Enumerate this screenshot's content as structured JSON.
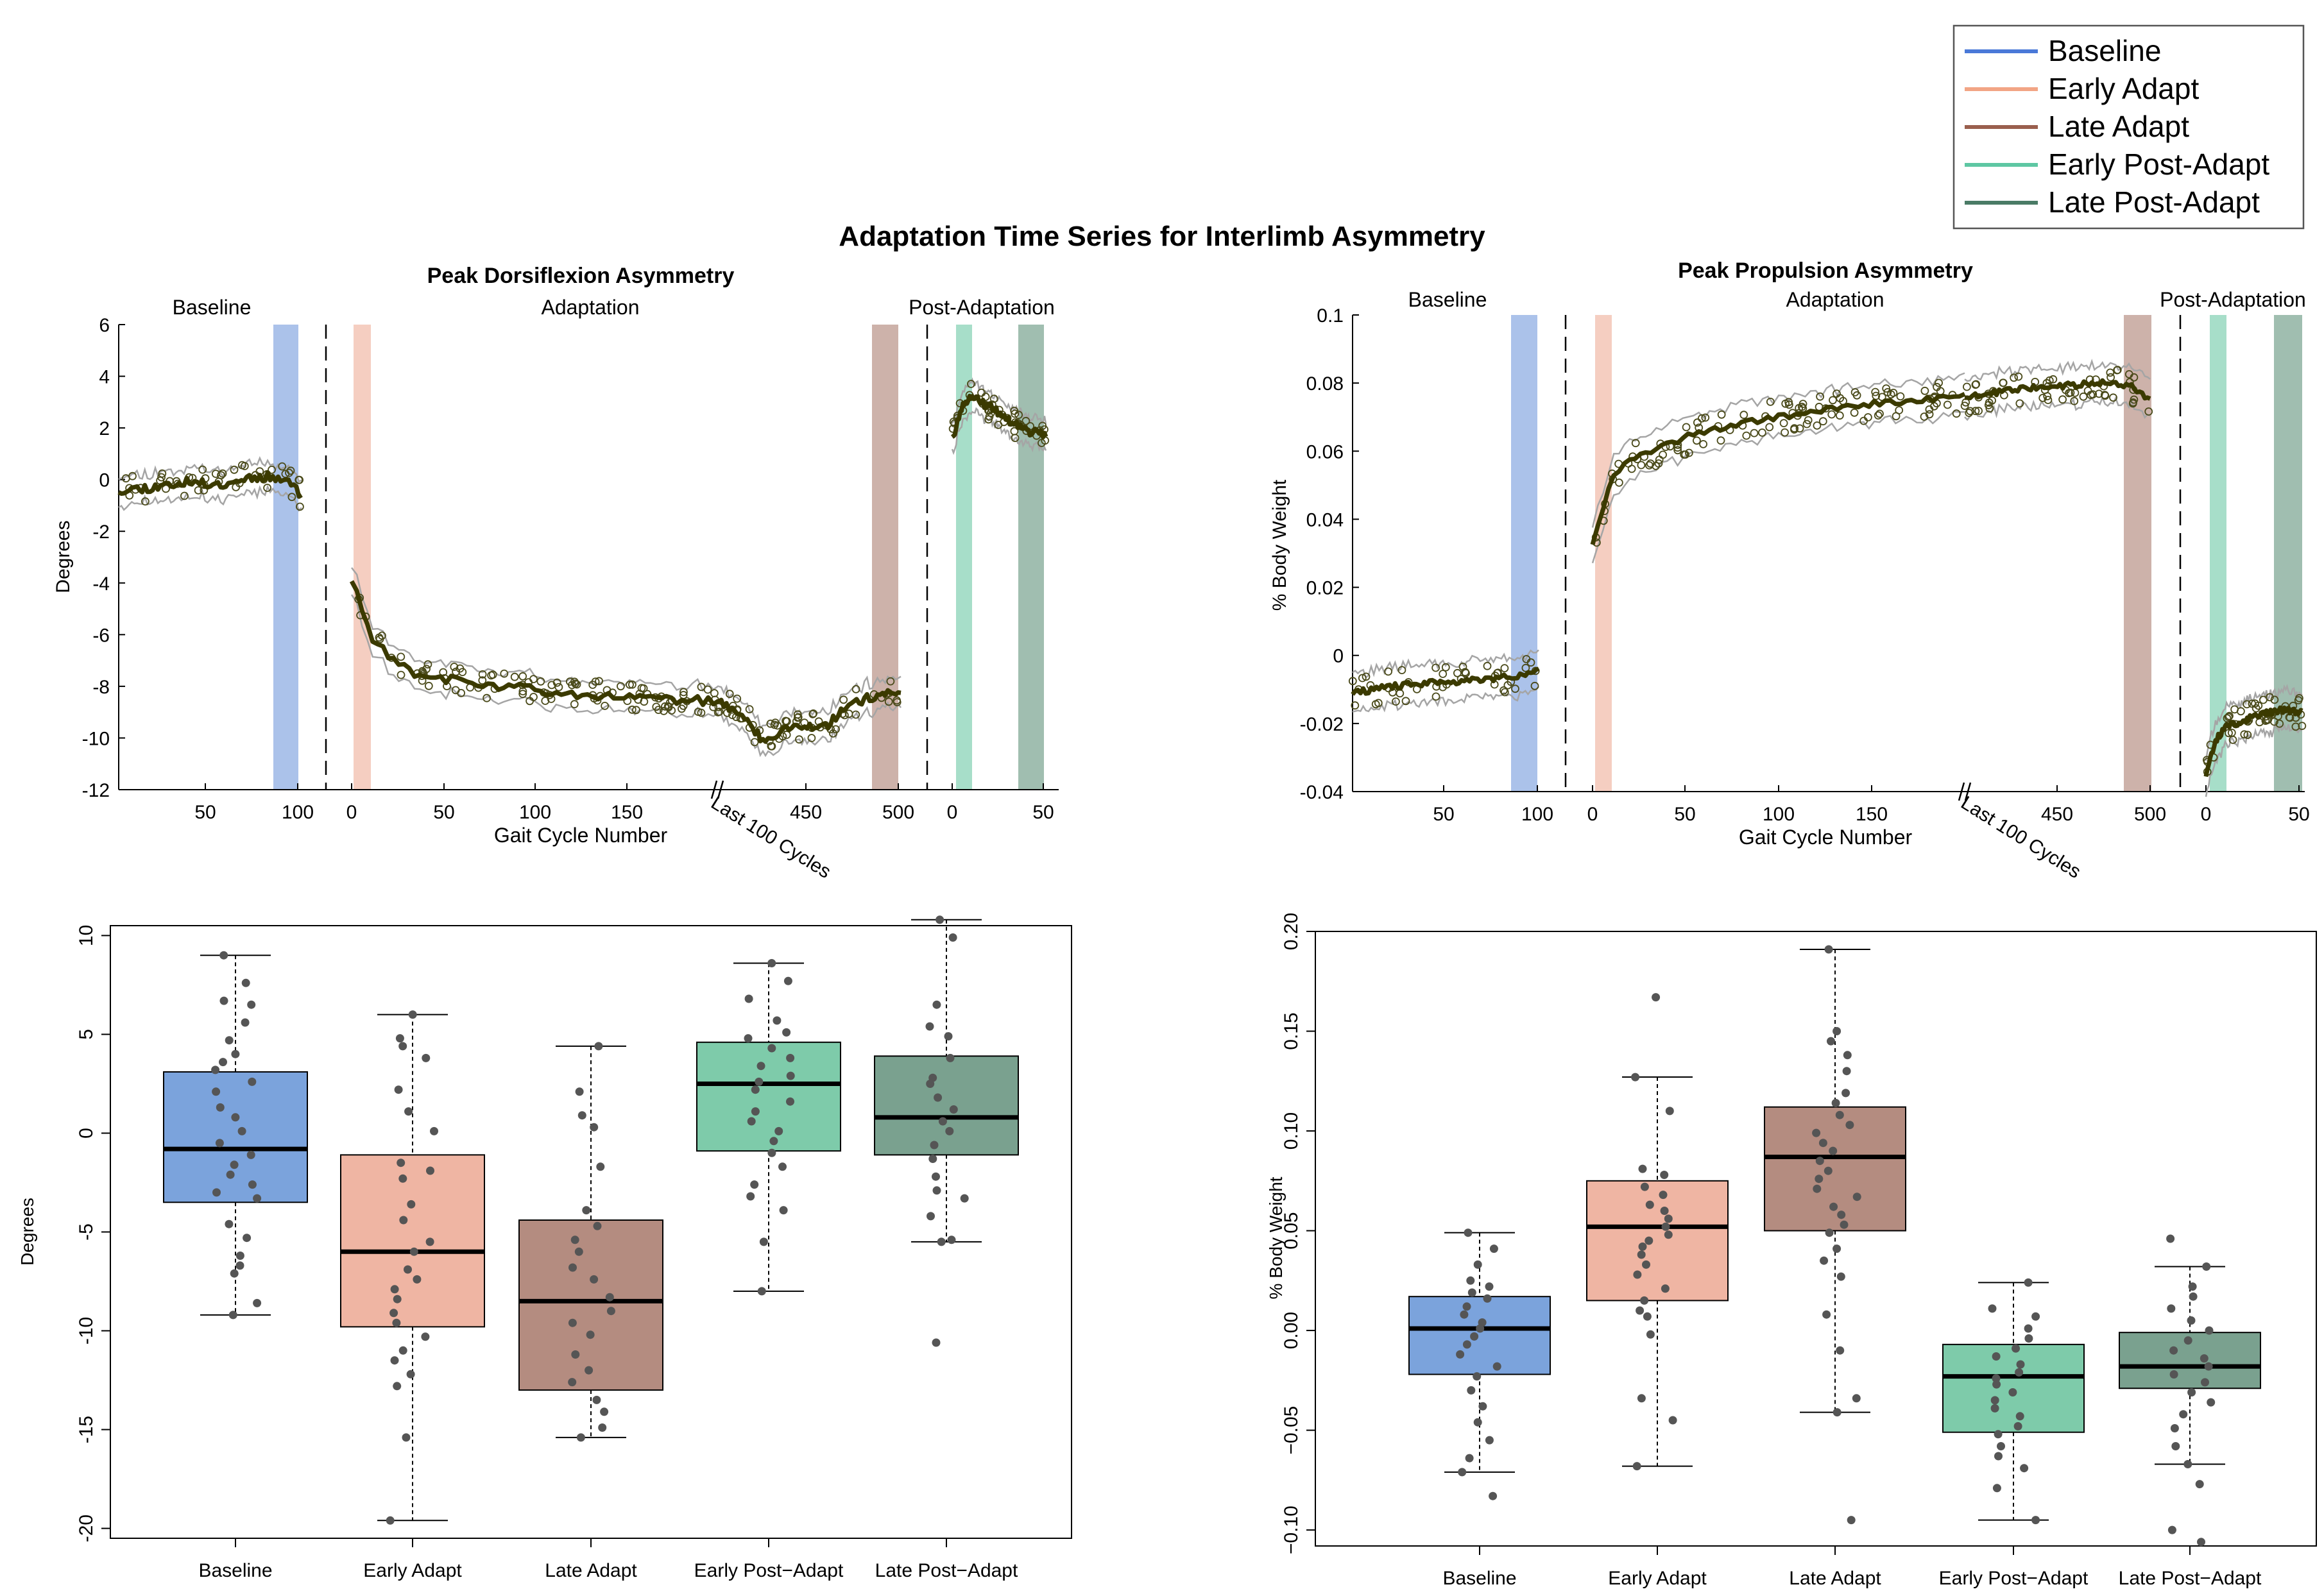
{
  "title": "Adaptation Time Series for Interlimb Asymmetry",
  "legend": {
    "placement": "top-right",
    "entries": [
      {
        "label": "Baseline",
        "color": "#4a79d8"
      },
      {
        "label": "Early Adapt",
        "color": "#f2a585"
      },
      {
        "label": "Late Adapt",
        "color": "#9a5f4e"
      },
      {
        "label": "Early Post-Adapt",
        "color": "#5ec7a3"
      },
      {
        "label": "Late Post-Adapt",
        "color": "#4a7b66"
      }
    ]
  },
  "colors": {
    "fill": [
      "#7ba3dc",
      "#efb5a3",
      "#b48c80",
      "#7ecbaa",
      "#7aa18f"
    ],
    "band": [
      "#9cb7e6",
      "#f3c5b6",
      "#c4a49b",
      "#98d8bf",
      "#8fb3a2"
    ],
    "trend": "#3b3a00",
    "ci": "#a5a5a5",
    "dot": "#555555"
  },
  "chart_data": [
    {
      "type": "line",
      "title": "Peak Dorsiflexion Asymmetry",
      "ylabel": "Degrees",
      "xlabel": "Gait Cycle Number",
      "ylim": [
        -12,
        6
      ],
      "yticks": [
        "6",
        "4",
        "2",
        "0",
        "-2",
        "-4",
        "-6",
        "-8",
        "-10",
        "-12"
      ],
      "xticks": [
        "50",
        "100",
        "0",
        "50",
        "100",
        "150",
        "450",
        "500",
        "0",
        "50"
      ],
      "break_label": "Last 100 Cycles",
      "sections": [
        "Baseline",
        "Adaptation",
        "Post-Adaptation"
      ],
      "trend": {
        "baseline": [
          [
            0,
            -0.4
          ],
          [
            20,
            -0.3
          ],
          [
            40,
            -0.1
          ],
          [
            60,
            -0.2
          ],
          [
            80,
            0.1
          ],
          [
            100,
            0.1
          ],
          [
            110,
            -0.6
          ]
        ],
        "adaptation": [
          [
            0,
            -3.8
          ],
          [
            10,
            -6.0
          ],
          [
            20,
            -6.8
          ],
          [
            30,
            -7.4
          ],
          [
            50,
            -7.7
          ],
          [
            75,
            -8.0
          ],
          [
            100,
            -8.1
          ],
          [
            125,
            -8.3
          ],
          [
            150,
            -8.4
          ],
          [
            175,
            -8.5
          ],
          [
            200,
            -8.6
          ]
        ],
        "last100": [
          [
            400,
            -8.6
          ],
          [
            415,
            -9.2
          ],
          [
            425,
            -10.2
          ],
          [
            435,
            -9.6
          ],
          [
            445,
            -9.6
          ],
          [
            460,
            -9.5
          ],
          [
            470,
            -8.8
          ],
          [
            480,
            -8.5
          ],
          [
            490,
            -8.3
          ],
          [
            500,
            -8.4
          ]
        ],
        "post": [
          [
            0,
            1.5
          ],
          [
            5,
            2.8
          ],
          [
            10,
            3.3
          ],
          [
            20,
            2.8
          ],
          [
            30,
            2.3
          ],
          [
            40,
            1.9
          ],
          [
            50,
            1.8
          ]
        ]
      }
    },
    {
      "type": "line",
      "title": "Peak Propulsion Asymmetry",
      "ylabel": "% Body Weight",
      "xlabel": "Gait Cycle Number",
      "ylim": [
        -0.04,
        0.1
      ],
      "yticks": [
        "0.1",
        "0.08",
        "0.06",
        "0.04",
        "0.02",
        "0",
        "-0.02",
        "-0.04"
      ],
      "xticks": [
        "50",
        "100",
        "0",
        "50",
        "100",
        "150",
        "450",
        "500",
        "0",
        "50"
      ],
      "break_label": "Last 100 Cycles",
      "sections": [
        "Baseline",
        "Adaptation",
        "Post-Adaptation"
      ],
      "trend": {
        "baseline": [
          [
            0,
            -0.011
          ],
          [
            25,
            -0.009
          ],
          [
            50,
            -0.008
          ],
          [
            75,
            -0.007
          ],
          [
            100,
            -0.006
          ],
          [
            110,
            -0.004
          ]
        ],
        "adaptation": [
          [
            0,
            0.033
          ],
          [
            10,
            0.052
          ],
          [
            20,
            0.057
          ],
          [
            40,
            0.062
          ],
          [
            60,
            0.066
          ],
          [
            80,
            0.068
          ],
          [
            100,
            0.07
          ],
          [
            125,
            0.072
          ],
          [
            150,
            0.074
          ],
          [
            175,
            0.075
          ],
          [
            200,
            0.076
          ]
        ],
        "last100": [
          [
            400,
            0.076
          ],
          [
            425,
            0.078
          ],
          [
            450,
            0.079
          ],
          [
            475,
            0.08
          ],
          [
            490,
            0.079
          ],
          [
            500,
            0.075
          ]
        ],
        "post": [
          [
            0,
            -0.035
          ],
          [
            5,
            -0.025
          ],
          [
            10,
            -0.021
          ],
          [
            20,
            -0.019
          ],
          [
            30,
            -0.017
          ],
          [
            40,
            -0.016
          ],
          [
            50,
            -0.017
          ]
        ]
      }
    },
    {
      "type": "box",
      "ylabel": "Degrees",
      "ylim": [
        -20.5,
        10.5
      ],
      "yticks": [
        10,
        5,
        0,
        -5,
        -10,
        -15,
        -20
      ],
      "categories": [
        "Baseline",
        "Early Adapt",
        "Late Adapt",
        "Early Post−Adapt",
        "Late Post−Adapt"
      ],
      "boxes": [
        {
          "q1": -3.5,
          "median": -0.8,
          "q3": 3.1,
          "whisker_low": -9.2,
          "whisker_high": 9.0,
          "points": [
            9.0,
            7.6,
            6.7,
            6.5,
            5.6,
            4.7,
            4.0,
            3.6,
            3.2,
            2.6,
            2.1,
            1.3,
            0.8,
            0.1,
            -0.5,
            -1.1,
            -1.6,
            -2.1,
            -2.6,
            -3.0,
            -3.3,
            -4.6,
            -5.3,
            -6.2,
            -6.7,
            -7.1,
            -8.6,
            -9.2
          ]
        },
        {
          "q1": -9.8,
          "median": -6.0,
          "q3": -1.1,
          "whisker_low": -19.6,
          "whisker_high": 6.0,
          "points": [
            6.0,
            4.8,
            4.4,
            3.8,
            2.2,
            1.1,
            0.1,
            -1.5,
            -1.9,
            -2.3,
            -3.6,
            -4.4,
            -5.5,
            -6.0,
            -6.9,
            -7.4,
            -7.9,
            -8.4,
            -9.1,
            -9.6,
            -10.3,
            -11.0,
            -11.5,
            -12.2,
            -12.8,
            -15.4,
            -19.6
          ]
        },
        {
          "q1": -13.0,
          "median": -8.5,
          "q3": -4.4,
          "whisker_low": -15.4,
          "whisker_high": 4.4,
          "points": [
            4.4,
            2.1,
            0.9,
            0.3,
            -1.7,
            -3.9,
            -4.7,
            -5.4,
            -6.0,
            -6.8,
            -7.4,
            -8.3,
            -9.0,
            -9.6,
            -10.2,
            -11.2,
            -12.0,
            -12.6,
            -13.5,
            -14.1,
            -14.9,
            -15.4
          ]
        },
        {
          "q1": -0.9,
          "median": 2.5,
          "q3": 4.6,
          "whisker_low": -8.0,
          "whisker_high": 8.6,
          "points": [
            8.6,
            7.7,
            6.8,
            5.7,
            5.1,
            4.8,
            4.3,
            3.8,
            3.4,
            2.9,
            2.6,
            2.2,
            1.6,
            1.1,
            0.6,
            0.1,
            -0.4,
            -1.0,
            -1.7,
            -2.6,
            -3.2,
            -3.9,
            -5.5,
            -8.0
          ]
        },
        {
          "q1": -1.1,
          "median": 0.8,
          "q3": 3.9,
          "whisker_low": -5.5,
          "whisker_high": 10.8,
          "points": [
            10.8,
            9.9,
            6.5,
            5.4,
            4.9,
            3.8,
            2.8,
            2.5,
            1.8,
            1.2,
            0.6,
            0.1,
            -0.6,
            -1.3,
            -2.2,
            -2.9,
            -3.3,
            -4.2,
            -5.4,
            -5.5,
            -10.6
          ]
        }
      ]
    },
    {
      "type": "box",
      "ylabel": "% Body Weight",
      "ylim": [
        -0.108,
        0.2
      ],
      "yticks": [
        "0.20",
        "0.15",
        "0.10",
        "0.05",
        "0.00",
        "−0.05",
        "−0.10"
      ],
      "ytick_values": [
        0.2,
        0.15,
        0.1,
        0.05,
        0.0,
        -0.05,
        -0.1
      ],
      "categories": [
        "Baseline",
        "Early Adapt",
        "Late Adapt",
        "Early Post−Adapt",
        "Late Post−Adapt"
      ],
      "boxes": [
        {
          "q1": -0.022,
          "median": 0.001,
          "q3": 0.017,
          "whisker_low": -0.071,
          "whisker_high": 0.049,
          "points": [
            0.049,
            0.041,
            0.033,
            0.025,
            0.022,
            0.019,
            0.016,
            0.012,
            0.008,
            0.004,
            0.001,
            -0.003,
            -0.007,
            -0.012,
            -0.018,
            -0.023,
            -0.03,
            -0.038,
            -0.046,
            -0.055,
            -0.064,
            -0.071,
            -0.083
          ]
        },
        {
          "q1": 0.015,
          "median": 0.052,
          "q3": 0.075,
          "whisker_low": -0.068,
          "whisker_high": 0.127,
          "points": [
            0.167,
            0.127,
            0.11,
            0.081,
            0.078,
            0.072,
            0.068,
            0.063,
            0.06,
            0.056,
            0.052,
            0.048,
            0.045,
            0.042,
            0.038,
            0.033,
            0.028,
            0.021,
            0.015,
            0.01,
            0.007,
            -0.002,
            -0.034,
            -0.045,
            -0.068
          ]
        },
        {
          "q1": 0.05,
          "median": 0.087,
          "q3": 0.112,
          "whisker_low": -0.041,
          "whisker_high": 0.191,
          "points": [
            0.191,
            0.15,
            0.145,
            0.138,
            0.13,
            0.119,
            0.114,
            0.108,
            0.103,
            0.099,
            0.094,
            0.09,
            0.085,
            0.08,
            0.076,
            0.071,
            0.067,
            0.062,
            0.058,
            0.053,
            0.049,
            0.041,
            0.035,
            0.027,
            0.008,
            -0.01,
            -0.034,
            -0.041,
            -0.095
          ]
        },
        {
          "q1": -0.051,
          "median": -0.023,
          "q3": -0.007,
          "whisker_low": -0.095,
          "whisker_high": 0.024,
          "points": [
            0.024,
            0.011,
            0.007,
            0.001,
            -0.004,
            -0.009,
            -0.013,
            -0.017,
            -0.021,
            -0.024,
            -0.027,
            -0.031,
            -0.035,
            -0.039,
            -0.043,
            -0.048,
            -0.052,
            -0.058,
            -0.063,
            -0.069,
            -0.079,
            -0.095
          ]
        },
        {
          "q1": -0.029,
          "median": -0.018,
          "q3": -0.001,
          "whisker_low": -0.067,
          "whisker_high": 0.032,
          "points": [
            0.046,
            0.032,
            0.022,
            0.017,
            0.011,
            0.005,
            0.0,
            -0.005,
            -0.01,
            -0.014,
            -0.018,
            -0.022,
            -0.026,
            -0.031,
            -0.036,
            -0.042,
            -0.049,
            -0.058,
            -0.067,
            -0.077,
            -0.1,
            -0.106
          ]
        }
      ]
    }
  ]
}
